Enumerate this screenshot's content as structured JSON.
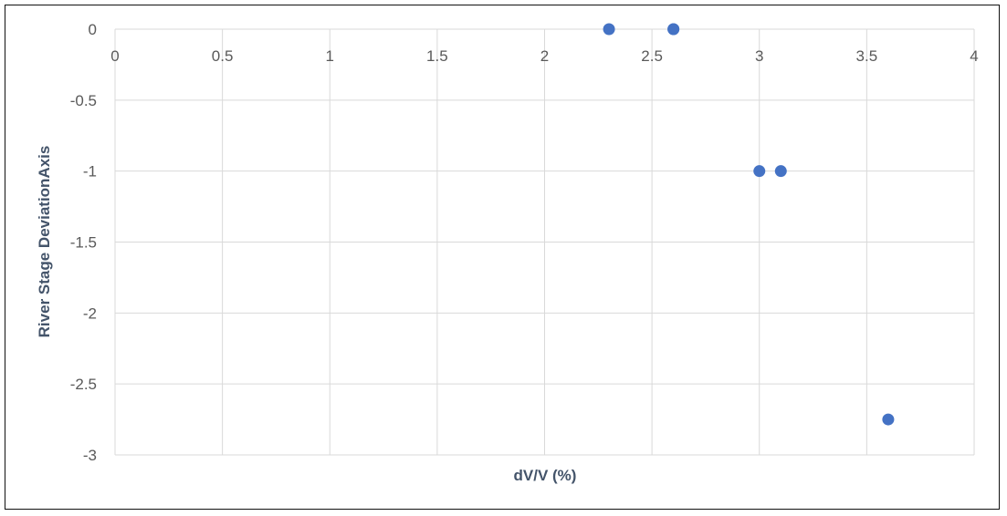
{
  "chart_data": {
    "type": "scatter",
    "xlabel": "dV/V (%)",
    "ylabel": "River Stage DeviationAxis",
    "xlim": [
      0,
      4
    ],
    "ylim": [
      -3,
      0
    ],
    "x_ticks": [
      "0",
      "0.5",
      "1",
      "1.5",
      "2",
      "2.5",
      "3",
      "3.5",
      "4"
    ],
    "y_ticks": [
      "0",
      "-0.5",
      "-1",
      "-1.5",
      "-2",
      "-2.5",
      "-3"
    ],
    "x_tick_values": [
      0,
      0.5,
      1,
      1.5,
      2,
      2.5,
      3,
      3.5,
      4
    ],
    "y_tick_values": [
      0,
      -0.5,
      -1,
      -1.5,
      -2,
      -2.5,
      -3
    ],
    "grid": true,
    "legend": "none",
    "marker_color": "#4472c4",
    "grid_color": "#d9d9d9",
    "points": [
      {
        "x": 2.3,
        "y": 0
      },
      {
        "x": 2.6,
        "y": 0
      },
      {
        "x": 2.6,
        "y": 0
      },
      {
        "x": 3.0,
        "y": -1
      },
      {
        "x": 3.1,
        "y": -1
      },
      {
        "x": 3.6,
        "y": -2.75
      }
    ]
  }
}
